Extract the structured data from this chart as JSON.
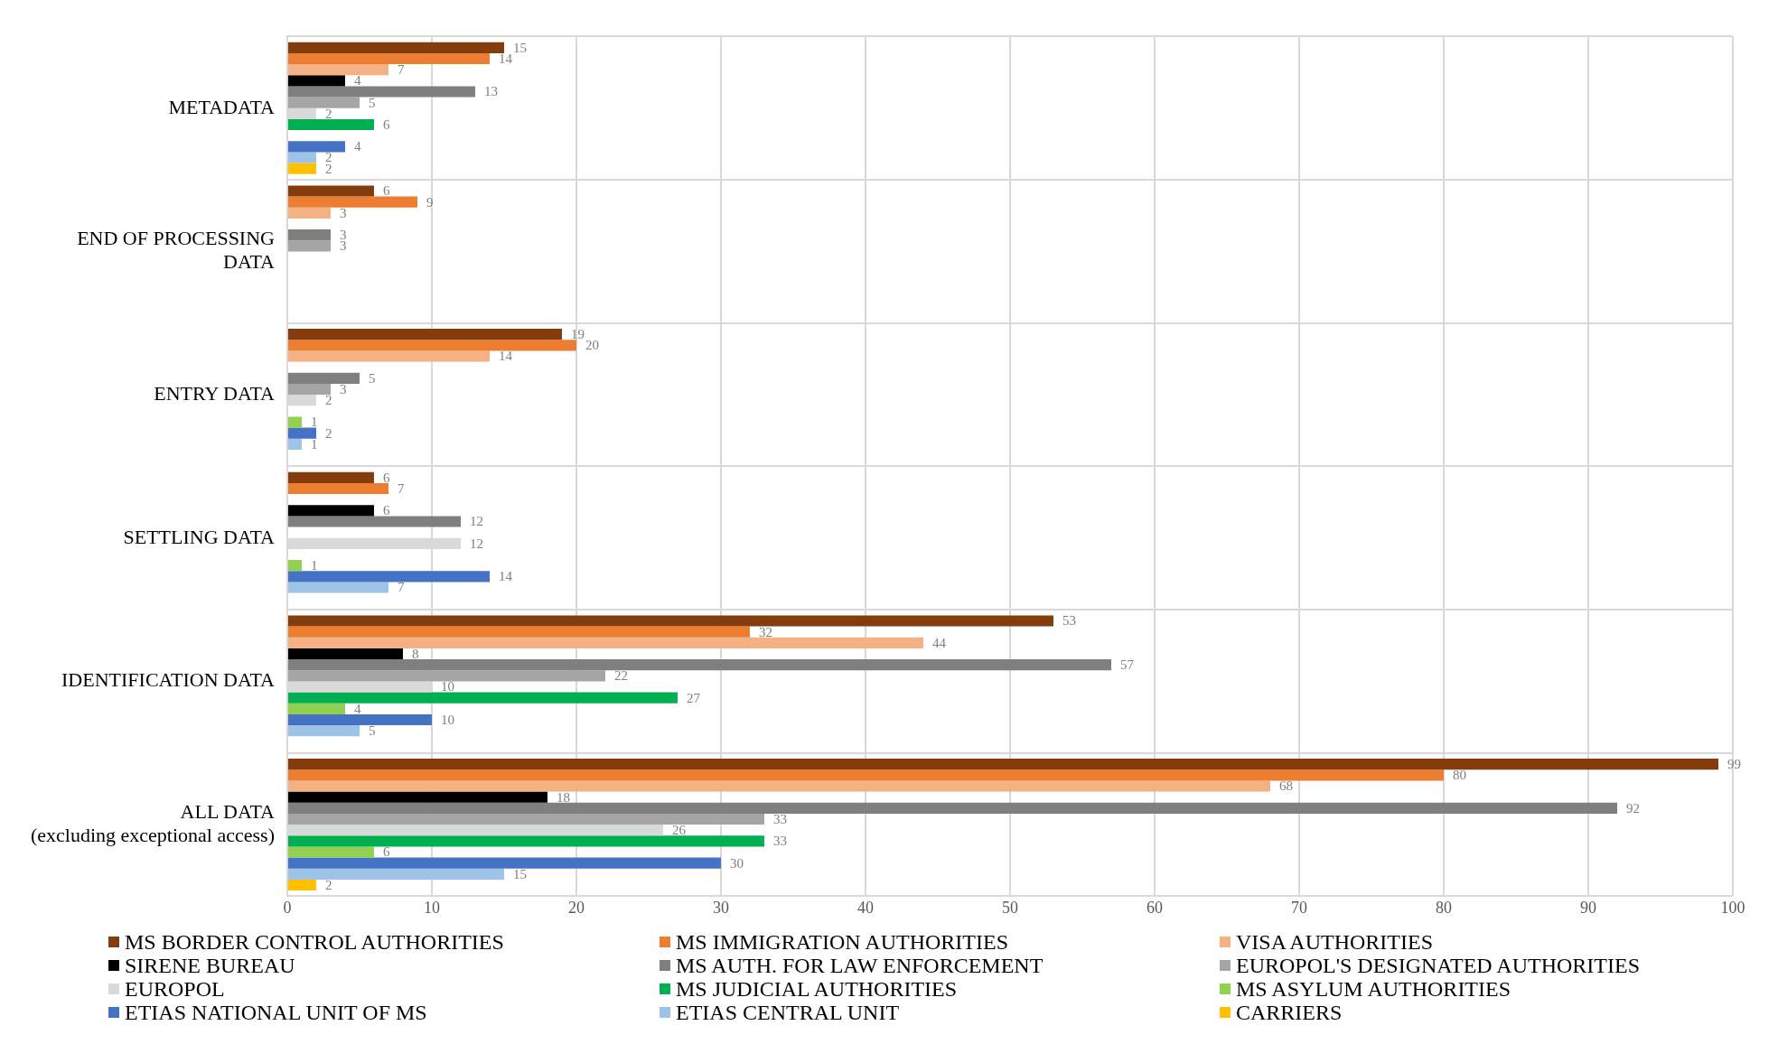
{
  "chart_data": {
    "type": "bar",
    "orientation": "horizontal",
    "categories": [
      "METADATA",
      "END OF PROCESSING DATA",
      "ENTRY DATA",
      "SETTLING DATA",
      "IDENTIFICATION DATA",
      "ALL DATA (excluding exceptional access)"
    ],
    "series": [
      {
        "name": "MS BORDER CONTROL AUTHORITIES",
        "color": "#843c0c",
        "values": [
          15,
          6,
          19,
          6,
          53,
          99
        ]
      },
      {
        "name": "MS IMMIGRATION AUTHORITIES",
        "color": "#ed7d31",
        "values": [
          14,
          9,
          20,
          7,
          32,
          80
        ]
      },
      {
        "name": "VISA AUTHORITIES",
        "color": "#f4b183",
        "values": [
          7,
          3,
          14,
          null,
          44,
          68
        ]
      },
      {
        "name": "SIRENE BUREAU",
        "color": "#000000",
        "values": [
          4,
          null,
          null,
          6,
          8,
          18
        ]
      },
      {
        "name": "MS AUTH. FOR LAW ENFORCEMENT",
        "color": "#7f7f7f",
        "values": [
          13,
          3,
          5,
          12,
          57,
          92
        ]
      },
      {
        "name": "EUROPOL'S DESIGNATED AUTHORITIES",
        "color": "#a5a5a5",
        "values": [
          5,
          3,
          3,
          null,
          22,
          33
        ]
      },
      {
        "name": "EUROPOL",
        "color": "#d9d9d9",
        "values": [
          2,
          null,
          2,
          12,
          10,
          26
        ]
      },
      {
        "name": "MS JUDICIAL AUTHORITIES",
        "color": "#00b050",
        "values": [
          6,
          null,
          null,
          null,
          27,
          33
        ]
      },
      {
        "name": "MS ASYLUM AUTHORITIES",
        "color": "#92d050",
        "values": [
          null,
          null,
          1,
          1,
          4,
          6
        ]
      },
      {
        "name": "ETIAS NATIONAL UNIT OF MS",
        "color": "#4472c4",
        "values": [
          4,
          null,
          2,
          14,
          10,
          30
        ]
      },
      {
        "name": "ETIAS CENTRAL UNIT",
        "color": "#9dc3e6",
        "values": [
          2,
          null,
          1,
          7,
          5,
          15
        ]
      },
      {
        "name": "CARRIERS",
        "color": "#ffc000",
        "values": [
          2,
          null,
          null,
          null,
          null,
          2
        ]
      }
    ],
    "xlim": [
      0,
      100
    ],
    "xticks": [
      0,
      10,
      20,
      30,
      40,
      50,
      60,
      70,
      80,
      90,
      100
    ],
    "grid": true,
    "legend": "bottom",
    "data_labels": true
  }
}
